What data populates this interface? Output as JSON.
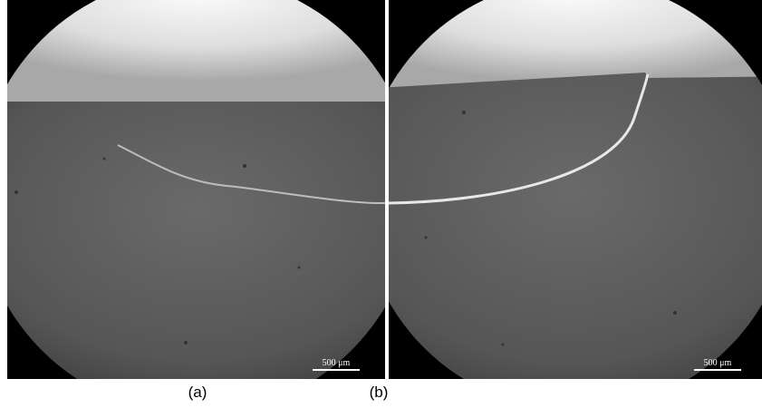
{
  "figure": {
    "panels": [
      {
        "label": "(a)",
        "scale_bar": "500 μm"
      },
      {
        "label": "(b)",
        "scale_bar": "500 μm"
      }
    ]
  }
}
